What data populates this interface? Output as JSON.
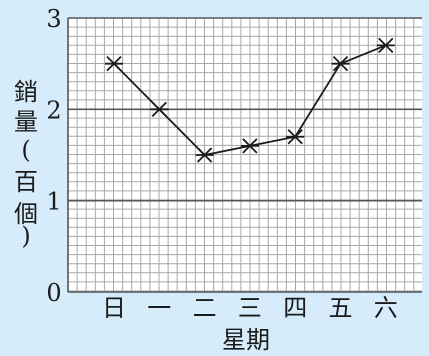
{
  "chart_data": {
    "type": "line",
    "categories": [
      "日",
      "一",
      "二",
      "三",
      "四",
      "五",
      "六"
    ],
    "series": [
      {
        "values": [
          2.5,
          2.0,
          1.5,
          1.6,
          1.7,
          2.5,
          2.7
        ]
      }
    ],
    "xlabel": "星期",
    "ylabel": "銷量(百個)",
    "ylabel_chars": [
      "銷",
      "量",
      "(",
      "百",
      "個",
      ")"
    ],
    "yticks": [
      "0",
      "1",
      "2",
      "3"
    ],
    "ylim": [
      0,
      3
    ],
    "grid": true,
    "marker": "star",
    "colors": {
      "background": "#d6ecfb",
      "plot_background": "#ffffff",
      "grid_minor": "#a7a7a7",
      "grid_major": "#555555",
      "line": "#1b1b1b"
    }
  }
}
